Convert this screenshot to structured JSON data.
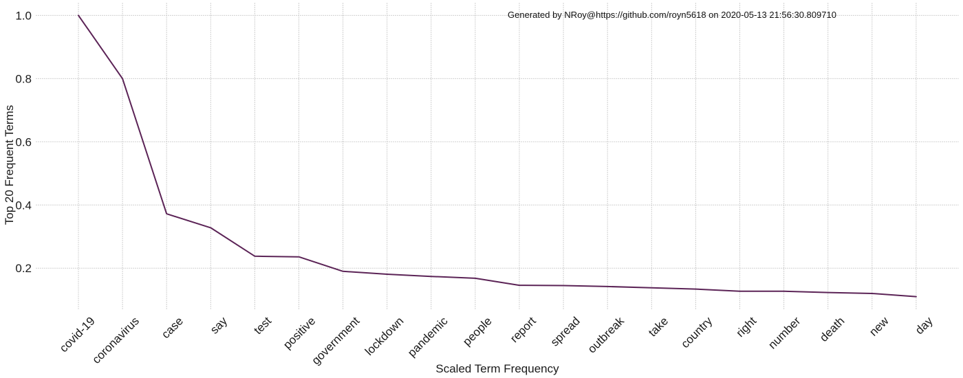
{
  "chart_data": {
    "type": "line",
    "categories": [
      "covid-19",
      "coronavirus",
      "case",
      "say",
      "test",
      "positive",
      "government",
      "lockdown",
      "pandemic",
      "people",
      "report",
      "spread",
      "outbreak",
      "take",
      "country",
      "right",
      "number",
      "death",
      "new",
      "day"
    ],
    "series": [
      {
        "values": [
          1.0,
          0.8,
          0.372,
          0.328,
          0.238,
          0.236,
          0.19,
          0.181,
          0.174,
          0.168,
          0.146,
          0.145,
          0.142,
          0.138,
          0.134,
          0.127,
          0.127,
          0.123,
          0.12,
          0.11
        ],
        "color": "#5b2356"
      }
    ],
    "xlabel": "Scaled Term Frequency",
    "ylabel": "Top 20 Frequent Terms",
    "ylim": [
      0.07,
      1.04
    ],
    "yticks": [
      "0.2",
      "0.4",
      "0.6",
      "0.8",
      "1.0"
    ],
    "annotation": "Generated by NRoy@https://github.com/royn5618 on 2020-05-13 21:56:30.809710",
    "grid": true
  }
}
